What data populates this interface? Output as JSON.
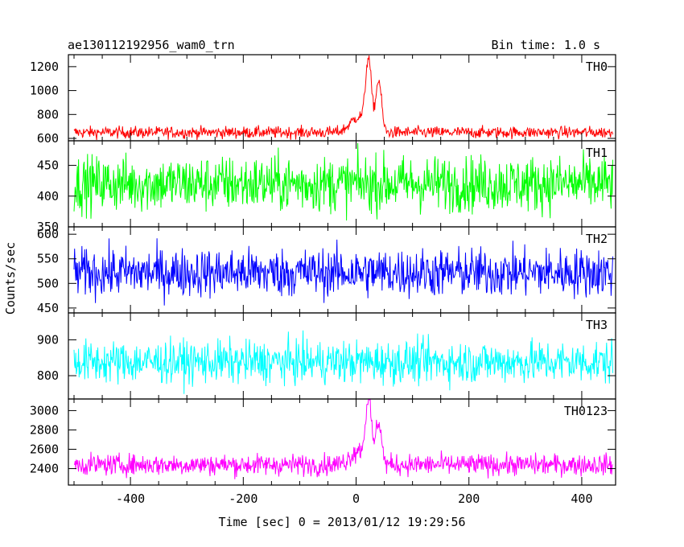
{
  "chart_data": {
    "type": "line",
    "title": "ae130112192956_wam0_trn",
    "subtitle": "Bin time: 1.0 s",
    "xlabel": "Time [sec] 0 = 2013/01/12 19:29:56",
    "ylabel": "Counts/sec",
    "xlim": [
      -510,
      460
    ],
    "x_range": [
      -500,
      455
    ],
    "x_ticks": [
      -400,
      -200,
      0,
      200,
      400
    ],
    "panels": [
      {
        "name": "TH0",
        "color": "#ff0000",
        "ylim": [
          580,
          1300
        ],
        "y_ticks": [
          600,
          800,
          1000,
          1200
        ],
        "baseline": 650,
        "noise": 25,
        "peaks": [
          {
            "t": 5,
            "height": 130,
            "width": 15
          },
          {
            "t": 22,
            "height": 560,
            "width": 5
          },
          {
            "t": 40,
            "height": 430,
            "width": 5
          }
        ]
      },
      {
        "name": "TH1",
        "color": "#00ff00",
        "ylim": [
          350,
          490
        ],
        "y_ticks": [
          350,
          400,
          450
        ],
        "baseline": 420,
        "noise": 23,
        "peaks": []
      },
      {
        "name": "TH2",
        "color": "#0000ff",
        "ylim": [
          440,
          615
        ],
        "y_ticks": [
          450,
          500,
          550,
          600
        ],
        "baseline": 522,
        "noise": 25,
        "peaks": []
      },
      {
        "name": "TH3",
        "color": "#00ffff",
        "ylim": [
          735,
          975
        ],
        "y_ticks": [
          800,
          900
        ],
        "baseline": 838,
        "noise": 30,
        "peaks": []
      },
      {
        "name": "TH0123",
        "color": "#ff00ff",
        "ylim": [
          2230,
          3120
        ],
        "y_ticks": [
          2400,
          2600,
          2800,
          3000
        ],
        "baseline": 2440,
        "noise": 55,
        "peaks": [
          {
            "t": 5,
            "height": 150,
            "width": 15
          },
          {
            "t": 22,
            "height": 620,
            "width": 5
          },
          {
            "t": 40,
            "height": 450,
            "width": 5
          }
        ]
      }
    ]
  }
}
